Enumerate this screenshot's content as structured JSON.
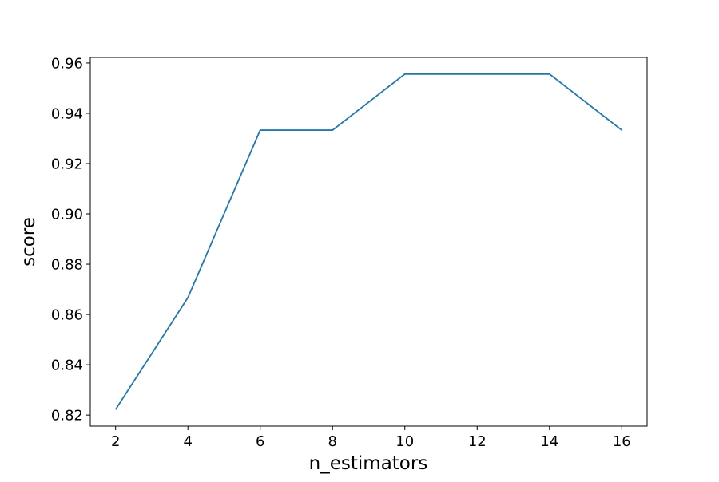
{
  "chart_data": {
    "type": "line",
    "title": "",
    "xlabel": "n_estimators",
    "ylabel": "score",
    "x": [
      2,
      4,
      6,
      8,
      10,
      12,
      14,
      16
    ],
    "series": [
      {
        "values": [
          0.8222,
          0.8667,
          0.9333,
          0.9333,
          0.9556,
          0.9556,
          0.9556,
          0.9333
        ],
        "color": "#1f77b4"
      }
    ],
    "xlim": [
      1.3,
      16.7
    ],
    "ylim": [
      0.8156,
      0.9622
    ],
    "xticks": [
      2,
      4,
      6,
      8,
      10,
      12,
      14,
      16
    ],
    "xtick_labels": [
      "2",
      "4",
      "6",
      "8",
      "10",
      "12",
      "14",
      "16"
    ],
    "yticks": [
      0.82,
      0.84,
      0.86,
      0.88,
      0.9,
      0.92,
      0.94,
      0.96
    ],
    "ytick_labels": [
      "0.82",
      "0.84",
      "0.86",
      "0.88",
      "0.90",
      "0.92",
      "0.94",
      "0.96"
    ],
    "grid": false,
    "legend": "none"
  }
}
